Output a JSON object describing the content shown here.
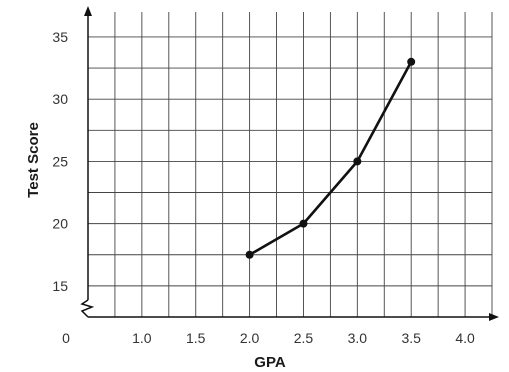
{
  "chart_data": {
    "type": "line",
    "xlabel": "GPA",
    "ylabel": "Test Score",
    "origin_label": "0",
    "x_ticks": [
      "1.0",
      "1.5",
      "2.0",
      "2.5",
      "3.0",
      "3.5",
      "4.0"
    ],
    "y_ticks": [
      "15",
      "20",
      "25",
      "30",
      "35"
    ],
    "xlim": [
      0.5,
      4.25
    ],
    "ylim": [
      12.5,
      37
    ],
    "grid": true,
    "axis_break_on_y": true,
    "series": [
      {
        "x": [
          2.0,
          2.5,
          3.0,
          3.5
        ],
        "values": [
          17.5,
          20,
          25,
          33
        ]
      }
    ]
  }
}
